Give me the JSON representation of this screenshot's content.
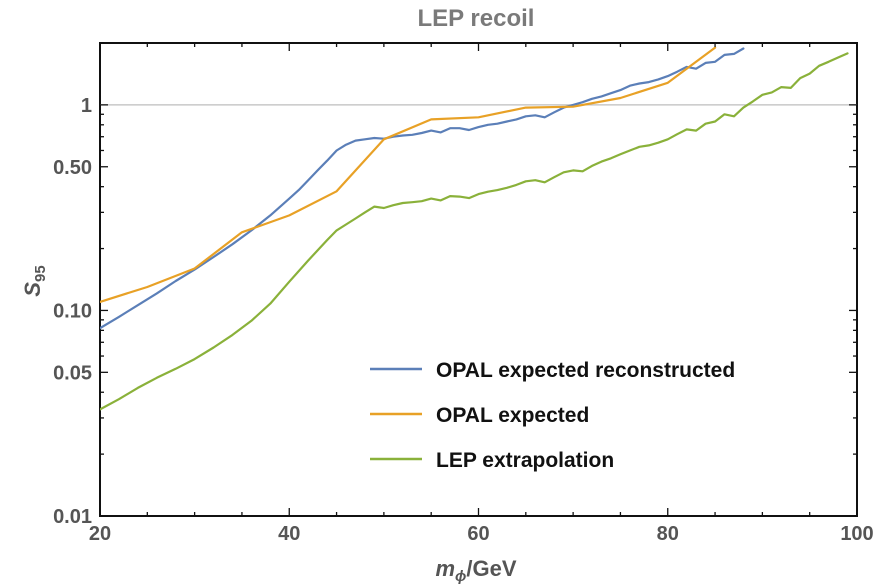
{
  "chart_data": {
    "type": "line",
    "title": "LEP recoil",
    "xlabel": "m_ϕ/GeV",
    "xlabel_main": "m",
    "xlabel_sub": "ϕ",
    "xlabel_rest": "/GeV",
    "ylabel": "S_95",
    "ylabel_main": "S",
    "ylabel_sub": "95",
    "x_scale": "linear",
    "y_scale": "log",
    "xlim": [
      20,
      100
    ],
    "ylim": [
      0.01,
      2
    ],
    "x_ticks": [
      20,
      40,
      60,
      80,
      100
    ],
    "x_tick_labels": [
      "20",
      "40",
      "60",
      "80",
      "100"
    ],
    "y_ticks": [
      0.01,
      0.05,
      0.1,
      0.5,
      1
    ],
    "y_tick_labels": [
      "0.01",
      "0.05",
      "0.10",
      "0.50",
      "1"
    ],
    "reference_line_y": 1,
    "legend_position": "bottom-right",
    "series": [
      {
        "name": "OPAL expected reconstructed",
        "color": "#5b7fb8",
        "x": [
          20,
          22,
          24,
          26,
          28,
          30,
          32,
          34,
          36,
          38,
          40,
          41,
          42,
          43,
          44,
          45,
          46,
          47,
          48,
          49,
          50,
          51,
          52,
          53,
          54,
          55,
          56,
          57,
          58,
          59,
          60,
          61,
          62,
          63,
          64,
          65,
          66,
          67,
          68,
          69,
          70,
          71,
          72,
          73,
          74,
          75,
          76,
          77,
          78,
          79,
          80,
          81,
          82,
          83,
          84,
          85,
          86,
          87,
          88
        ],
        "y": [
          0.082,
          0.093,
          0.106,
          0.121,
          0.139,
          0.158,
          0.182,
          0.21,
          0.245,
          0.29,
          0.35,
          0.385,
          0.43,
          0.48,
          0.535,
          0.6,
          0.64,
          0.67,
          0.68,
          0.69,
          0.685,
          0.7,
          0.71,
          0.715,
          0.73,
          0.75,
          0.735,
          0.77,
          0.77,
          0.755,
          0.78,
          0.8,
          0.81,
          0.83,
          0.85,
          0.88,
          0.89,
          0.87,
          0.92,
          0.97,
          1.0,
          1.03,
          1.07,
          1.1,
          1.14,
          1.18,
          1.24,
          1.27,
          1.29,
          1.33,
          1.38,
          1.45,
          1.53,
          1.5,
          1.6,
          1.62,
          1.75,
          1.77,
          1.88
        ]
      },
      {
        "name": "OPAL expected",
        "color": "#e8a126",
        "x": [
          20,
          25,
          30,
          35,
          40,
          45,
          50,
          55,
          60,
          65,
          70,
          75,
          80,
          85
        ],
        "y": [
          0.11,
          0.13,
          0.16,
          0.24,
          0.29,
          0.38,
          0.68,
          0.85,
          0.87,
          0.97,
          0.98,
          1.08,
          1.28,
          1.9
        ]
      },
      {
        "name": "LEP extrapolation",
        "color": "#8ab13a",
        "x": [
          20,
          22,
          24,
          26,
          28,
          30,
          32,
          34,
          36,
          38,
          40,
          42,
          44,
          45,
          46,
          47,
          48,
          49,
          50,
          51,
          52,
          53,
          54,
          55,
          56,
          57,
          58,
          59,
          60,
          61,
          62,
          63,
          64,
          65,
          66,
          67,
          68,
          69,
          70,
          71,
          72,
          73,
          74,
          75,
          76,
          77,
          78,
          79,
          80,
          81,
          82,
          83,
          84,
          85,
          86,
          87,
          88,
          89,
          90,
          91,
          92,
          93,
          94,
          95,
          96,
          97,
          98,
          99
        ],
        "y": [
          0.033,
          0.037,
          0.042,
          0.047,
          0.052,
          0.058,
          0.066,
          0.076,
          0.089,
          0.108,
          0.138,
          0.175,
          0.22,
          0.245,
          0.262,
          0.28,
          0.3,
          0.32,
          0.315,
          0.325,
          0.333,
          0.336,
          0.34,
          0.35,
          0.343,
          0.36,
          0.358,
          0.352,
          0.368,
          0.378,
          0.385,
          0.395,
          0.408,
          0.425,
          0.43,
          0.42,
          0.445,
          0.47,
          0.48,
          0.475,
          0.505,
          0.53,
          0.55,
          0.575,
          0.6,
          0.625,
          0.635,
          0.655,
          0.68,
          0.72,
          0.76,
          0.75,
          0.81,
          0.83,
          0.9,
          0.88,
          0.97,
          1.04,
          1.12,
          1.15,
          1.22,
          1.21,
          1.35,
          1.42,
          1.55,
          1.62,
          1.7,
          1.78
        ]
      }
    ]
  }
}
